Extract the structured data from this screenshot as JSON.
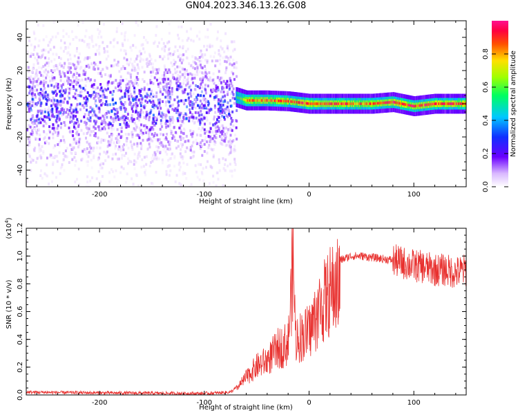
{
  "figure_title": "GN04.2023.346.13.26.G08",
  "colors": {
    "spectrogram_low": "#8a3dff",
    "snr_line": "#e8302e"
  },
  "chart_data": [
    {
      "type": "heatmap",
      "title": "",
      "xlabel": "Height of straight line (km)",
      "ylabel": "Frequency (Hz)",
      "xlim": [
        -270,
        150
      ],
      "ylim": [
        -50,
        50
      ],
      "x_ticks": [
        "-200",
        "-100",
        "0",
        "100"
      ],
      "y_ticks": [
        "-40",
        "-20",
        "0",
        "20",
        "40"
      ],
      "noise_region_x": [
        -270,
        -70
      ],
      "signal_trace": [
        {
          "x": -70,
          "y": 4,
          "level": 0.5
        },
        {
          "x": -60,
          "y": 2,
          "level": 0.8
        },
        {
          "x": -40,
          "y": 2,
          "level": 0.85
        },
        {
          "x": -20,
          "y": 1.5,
          "level": 0.85
        },
        {
          "x": 0,
          "y": 0,
          "level": 0.9
        },
        {
          "x": 20,
          "y": 0,
          "level": 0.9
        },
        {
          "x": 40,
          "y": 0,
          "level": 0.85
        },
        {
          "x": 60,
          "y": 0,
          "level": 0.85
        },
        {
          "x": 80,
          "y": 1,
          "level": 0.9
        },
        {
          "x": 100,
          "y": -1.5,
          "level": 0.9
        },
        {
          "x": 120,
          "y": 0,
          "level": 0.9
        },
        {
          "x": 150,
          "y": 0,
          "level": 0.85
        }
      ],
      "colorbar": {
        "label": "Normalized spectral amplitude",
        "range": [
          0,
          1
        ],
        "ticks": [
          "0.0",
          "0.2",
          "0.4",
          "0.6",
          "0.8"
        ]
      }
    },
    {
      "type": "line",
      "title": "",
      "xlabel": "Height of straight line (km)",
      "ylabel": "SNR (10 * v/v)",
      "y_multiplier": "(x10",
      "y_multiplier_exp": "4",
      "xlim": [
        -270,
        150
      ],
      "ylim": [
        0,
        1.2
      ],
      "x_ticks": [
        "-200",
        "-100",
        "0",
        "100"
      ],
      "y_ticks": [
        "0.0",
        "0.2",
        "0.4",
        "0.6",
        "0.8",
        "1.0",
        "1.2"
      ],
      "series": [
        {
          "x": [
            -270,
            -200,
            -100,
            -75,
            -70,
            -60,
            -50,
            -40,
            -30,
            -20,
            -15,
            -13,
            -10,
            0,
            10,
            20,
            30,
            40,
            50,
            60,
            70,
            80,
            90,
            100,
            110,
            120,
            130,
            140,
            150
          ],
          "y": [
            0.02,
            0.015,
            0.01,
            0.02,
            0.05,
            0.15,
            0.25,
            0.3,
            0.4,
            0.45,
            1.2,
            0.5,
            0.5,
            0.55,
            0.75,
            0.9,
            0.97,
            1.0,
            1.0,
            0.99,
            0.98,
            0.97,
            0.95,
            0.93,
            0.92,
            0.9,
            0.9,
            0.88,
            0.9
          ]
        }
      ]
    }
  ]
}
